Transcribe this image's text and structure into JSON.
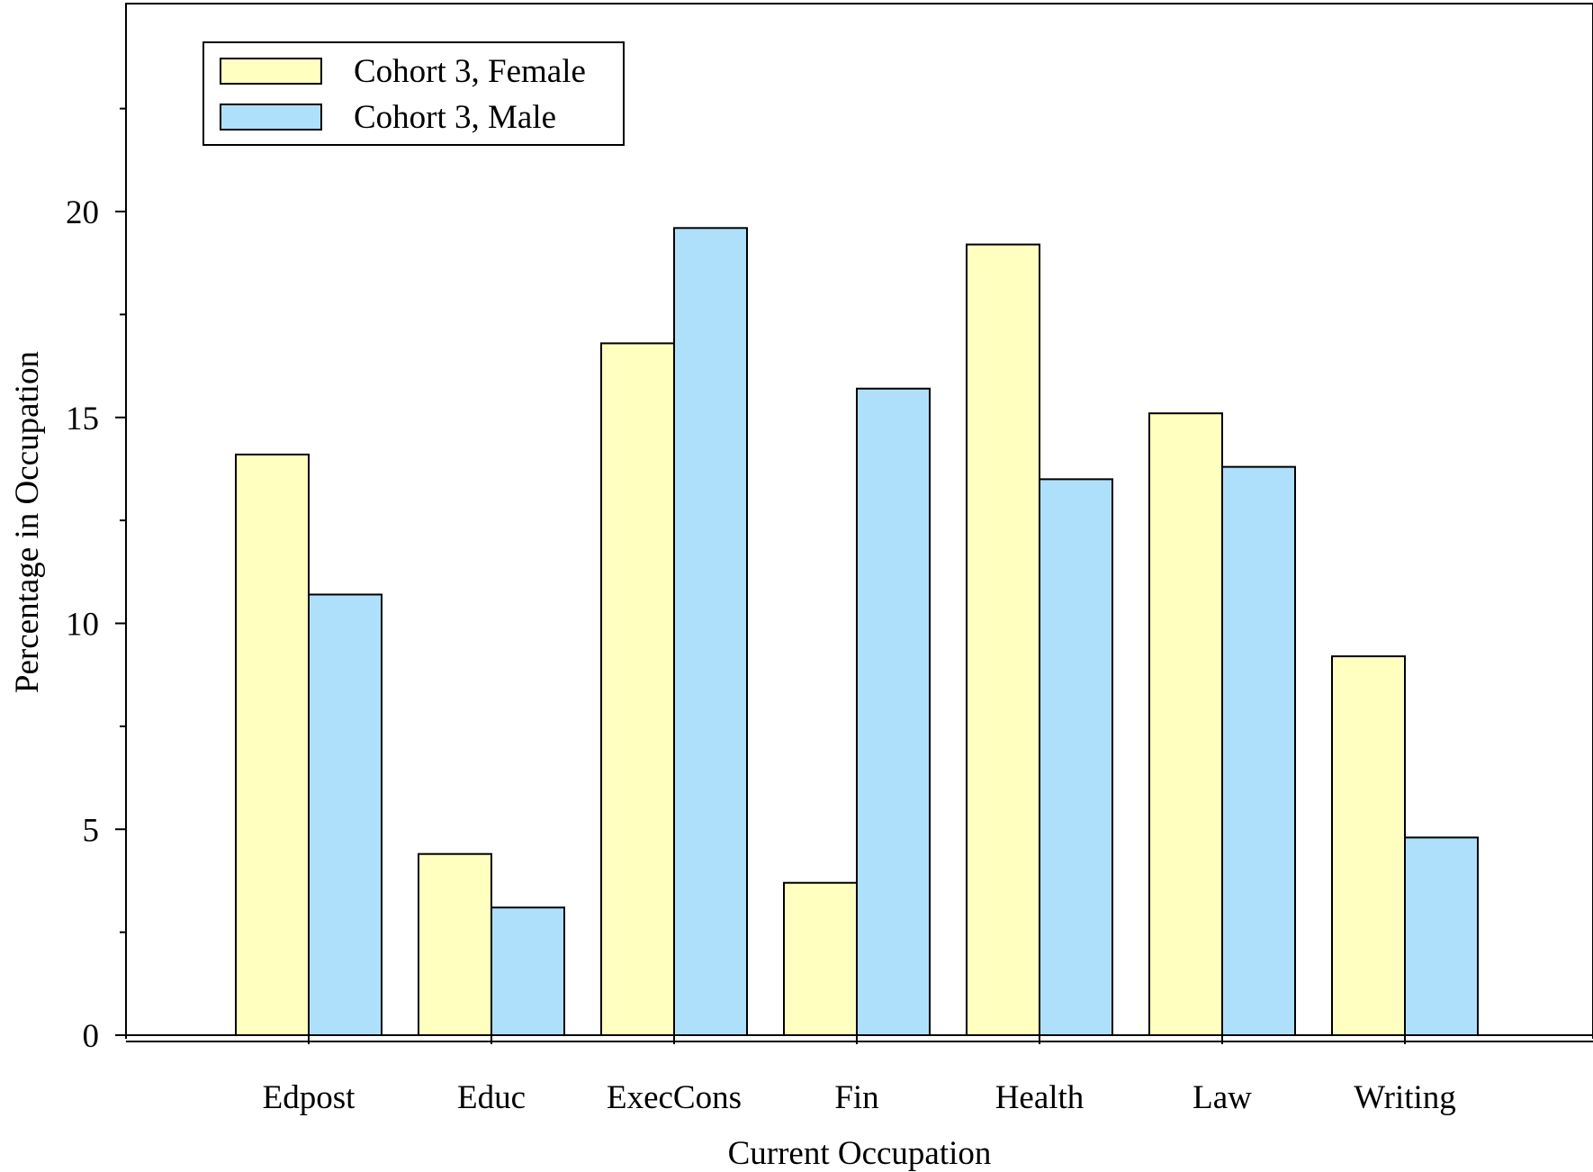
{
  "chart_data": {
    "type": "bar",
    "title": "",
    "xlabel": "Current Occupation",
    "ylabel": "Percentage in Occupation",
    "categories": [
      "Edpost",
      "Educ",
      "ExecCons",
      "Fin",
      "Health",
      "Law",
      "Writing"
    ],
    "series": [
      {
        "name": "Cohort 3, Female",
        "color": "#ffffc0",
        "values": [
          14.1,
          4.4,
          16.8,
          3.7,
          19.2,
          15.1,
          9.2
        ]
      },
      {
        "name": "Cohort 3, Male",
        "color": "#aee0fc",
        "values": [
          10.7,
          3.1,
          19.6,
          15.7,
          13.5,
          13.8,
          4.8
        ]
      }
    ],
    "ylim": [
      0,
      25
    ],
    "yticks": [
      0,
      5,
      10,
      15,
      20
    ],
    "yticks_minor": [
      2.5,
      7.5,
      12.5,
      17.5,
      22.5
    ],
    "grid": false,
    "legend_position": "top-left"
  }
}
